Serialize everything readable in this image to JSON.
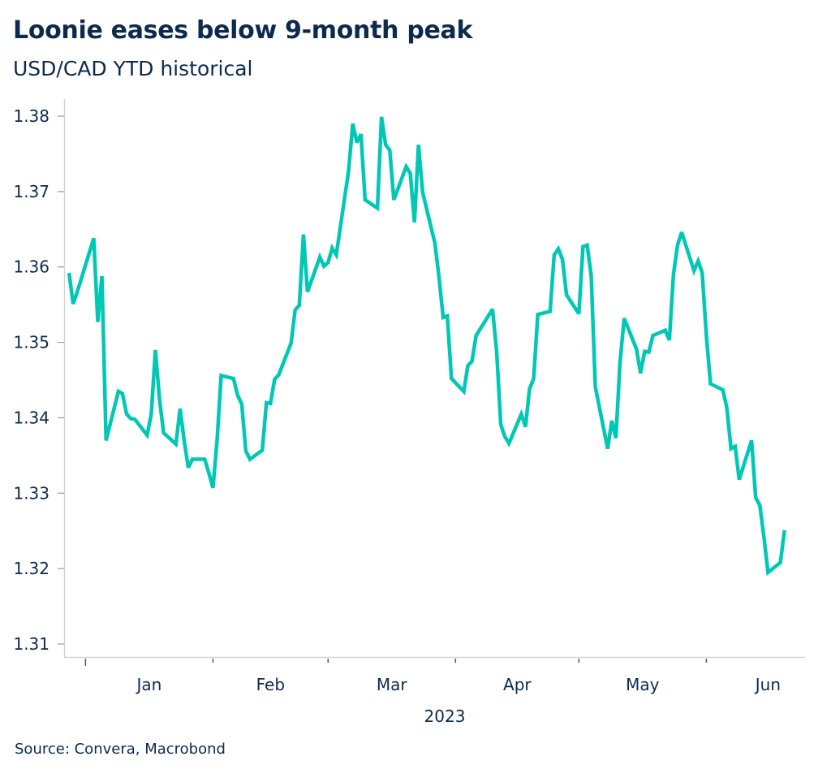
{
  "chart_data": {
    "type": "line",
    "title": "Loonie eases below 9-month peak",
    "subtitle": "USD/CAD YTD historical",
    "source": "Source: Convera, Macrobond",
    "xlabel": "2023",
    "ylabel": "",
    "ylim": [
      1.31,
      1.38
    ],
    "xlim": [
      "2022-12-27",
      "2023-06-25"
    ],
    "yticks": [
      "1.31",
      "1.32",
      "1.33",
      "1.34",
      "1.35",
      "1.36",
      "1.37",
      "1.38"
    ],
    "xticks": [
      {
        "label": "Jan",
        "date": "2023-01-01"
      },
      {
        "label": "Feb",
        "date": "2023-02-01"
      },
      {
        "label": "Mar",
        "date": "2023-03-01"
      },
      {
        "label": "Apr",
        "date": "2023-04-01"
      },
      {
        "label": "May",
        "date": "2023-05-01"
      },
      {
        "label": "Jun",
        "date": "2023-06-01"
      }
    ],
    "grid": false,
    "legend": "none",
    "line_color": "#00c8b4",
    "series": [
      {
        "x": [
          "2022-12-28",
          "2022-12-29",
          "2022-12-30",
          "2023-01-03",
          "2023-01-04",
          "2023-01-05",
          "2023-01-06",
          "2023-01-09",
          "2023-01-10",
          "2023-01-11",
          "2023-01-12",
          "2023-01-13",
          "2023-01-16",
          "2023-01-17",
          "2023-01-18",
          "2023-01-19",
          "2023-01-20",
          "2023-01-23",
          "2023-01-24",
          "2023-01-25",
          "2023-01-26",
          "2023-01-27",
          "2023-01-30",
          "2023-01-31",
          "2023-02-01",
          "2023-02-02",
          "2023-02-03",
          "2023-02-06",
          "2023-02-07",
          "2023-02-08",
          "2023-02-09",
          "2023-02-10",
          "2023-02-13",
          "2023-02-14",
          "2023-02-15",
          "2023-02-16",
          "2023-02-17",
          "2023-02-20",
          "2023-02-21",
          "2023-02-22",
          "2023-02-23",
          "2023-02-24",
          "2023-02-27",
          "2023-02-28",
          "2023-03-01",
          "2023-03-02",
          "2023-03-03",
          "2023-03-06",
          "2023-03-07",
          "2023-03-08",
          "2023-03-09",
          "2023-03-10",
          "2023-03-13",
          "2023-03-14",
          "2023-03-15",
          "2023-03-16",
          "2023-03-17",
          "2023-03-20",
          "2023-03-21",
          "2023-03-22",
          "2023-03-23",
          "2023-03-24",
          "2023-03-27",
          "2023-03-28",
          "2023-03-29",
          "2023-03-30",
          "2023-03-31",
          "2023-04-03",
          "2023-04-04",
          "2023-04-05",
          "2023-04-06",
          "2023-04-10",
          "2023-04-11",
          "2023-04-12",
          "2023-04-13",
          "2023-04-14",
          "2023-04-17",
          "2023-04-18",
          "2023-04-19",
          "2023-04-20",
          "2023-04-21",
          "2023-04-24",
          "2023-04-25",
          "2023-04-26",
          "2023-04-27",
          "2023-04-28",
          "2023-05-01",
          "2023-05-02",
          "2023-05-03",
          "2023-05-04",
          "2023-05-05",
          "2023-05-08",
          "2023-05-09",
          "2023-05-10",
          "2023-05-11",
          "2023-05-12",
          "2023-05-15",
          "2023-05-16",
          "2023-05-17",
          "2023-05-18",
          "2023-05-19",
          "2023-05-22",
          "2023-05-23",
          "2023-05-24",
          "2023-05-25",
          "2023-05-26",
          "2023-05-29",
          "2023-05-30",
          "2023-05-31",
          "2023-06-01",
          "2023-06-02",
          "2023-06-05",
          "2023-06-06",
          "2023-06-07",
          "2023-06-08",
          "2023-06-09",
          "2023-06-12",
          "2023-06-13",
          "2023-06-14",
          "2023-06-15",
          "2023-06-16",
          "2023-06-19",
          "2023-06-20"
        ],
        "y": [
          1.3592,
          1.3551,
          1.3567,
          1.3638,
          1.3527,
          1.3588,
          1.337,
          1.3435,
          1.3432,
          1.3405,
          1.3399,
          1.3398,
          1.3377,
          1.3405,
          1.349,
          1.3425,
          1.338,
          1.3365,
          1.3412,
          1.337,
          1.3334,
          1.3345,
          1.3345,
          1.3327,
          1.3307,
          1.337,
          1.3456,
          1.3452,
          1.343,
          1.3418,
          1.3356,
          1.3345,
          1.3357,
          1.342,
          1.3419,
          1.3451,
          1.3457,
          1.3499,
          1.3543,
          1.3549,
          1.3643,
          1.3567,
          1.3613,
          1.3601,
          1.3606,
          1.3625,
          1.3616,
          1.3728,
          1.379,
          1.3765,
          1.3776,
          1.3689,
          1.3678,
          1.3799,
          1.3762,
          1.3755,
          1.3689,
          1.3733,
          1.3724,
          1.3659,
          1.3762,
          1.3699,
          1.3631,
          1.3585,
          1.3533,
          1.3535,
          1.3452,
          1.3435,
          1.3469,
          1.3475,
          1.3509,
          1.3544,
          1.3488,
          1.3391,
          1.3375,
          1.3366,
          1.3405,
          1.3388,
          1.3438,
          1.3452,
          1.3537,
          1.3541,
          1.3616,
          1.3624,
          1.361,
          1.3563,
          1.3538,
          1.3627,
          1.3629,
          1.3589,
          1.3441,
          1.3359,
          1.3396,
          1.3373,
          1.3473,
          1.3532,
          1.3491,
          1.3459,
          1.3488,
          1.3487,
          1.3509,
          1.3516,
          1.3503,
          1.359,
          1.3629,
          1.3646,
          1.3595,
          1.3608,
          1.3592,
          1.3509,
          1.3445,
          1.3437,
          1.3413,
          1.3359,
          1.3362,
          1.3318,
          1.337,
          1.3294,
          1.3284,
          1.3242,
          1.3195,
          1.3208,
          1.3251
        ]
      }
    ]
  }
}
